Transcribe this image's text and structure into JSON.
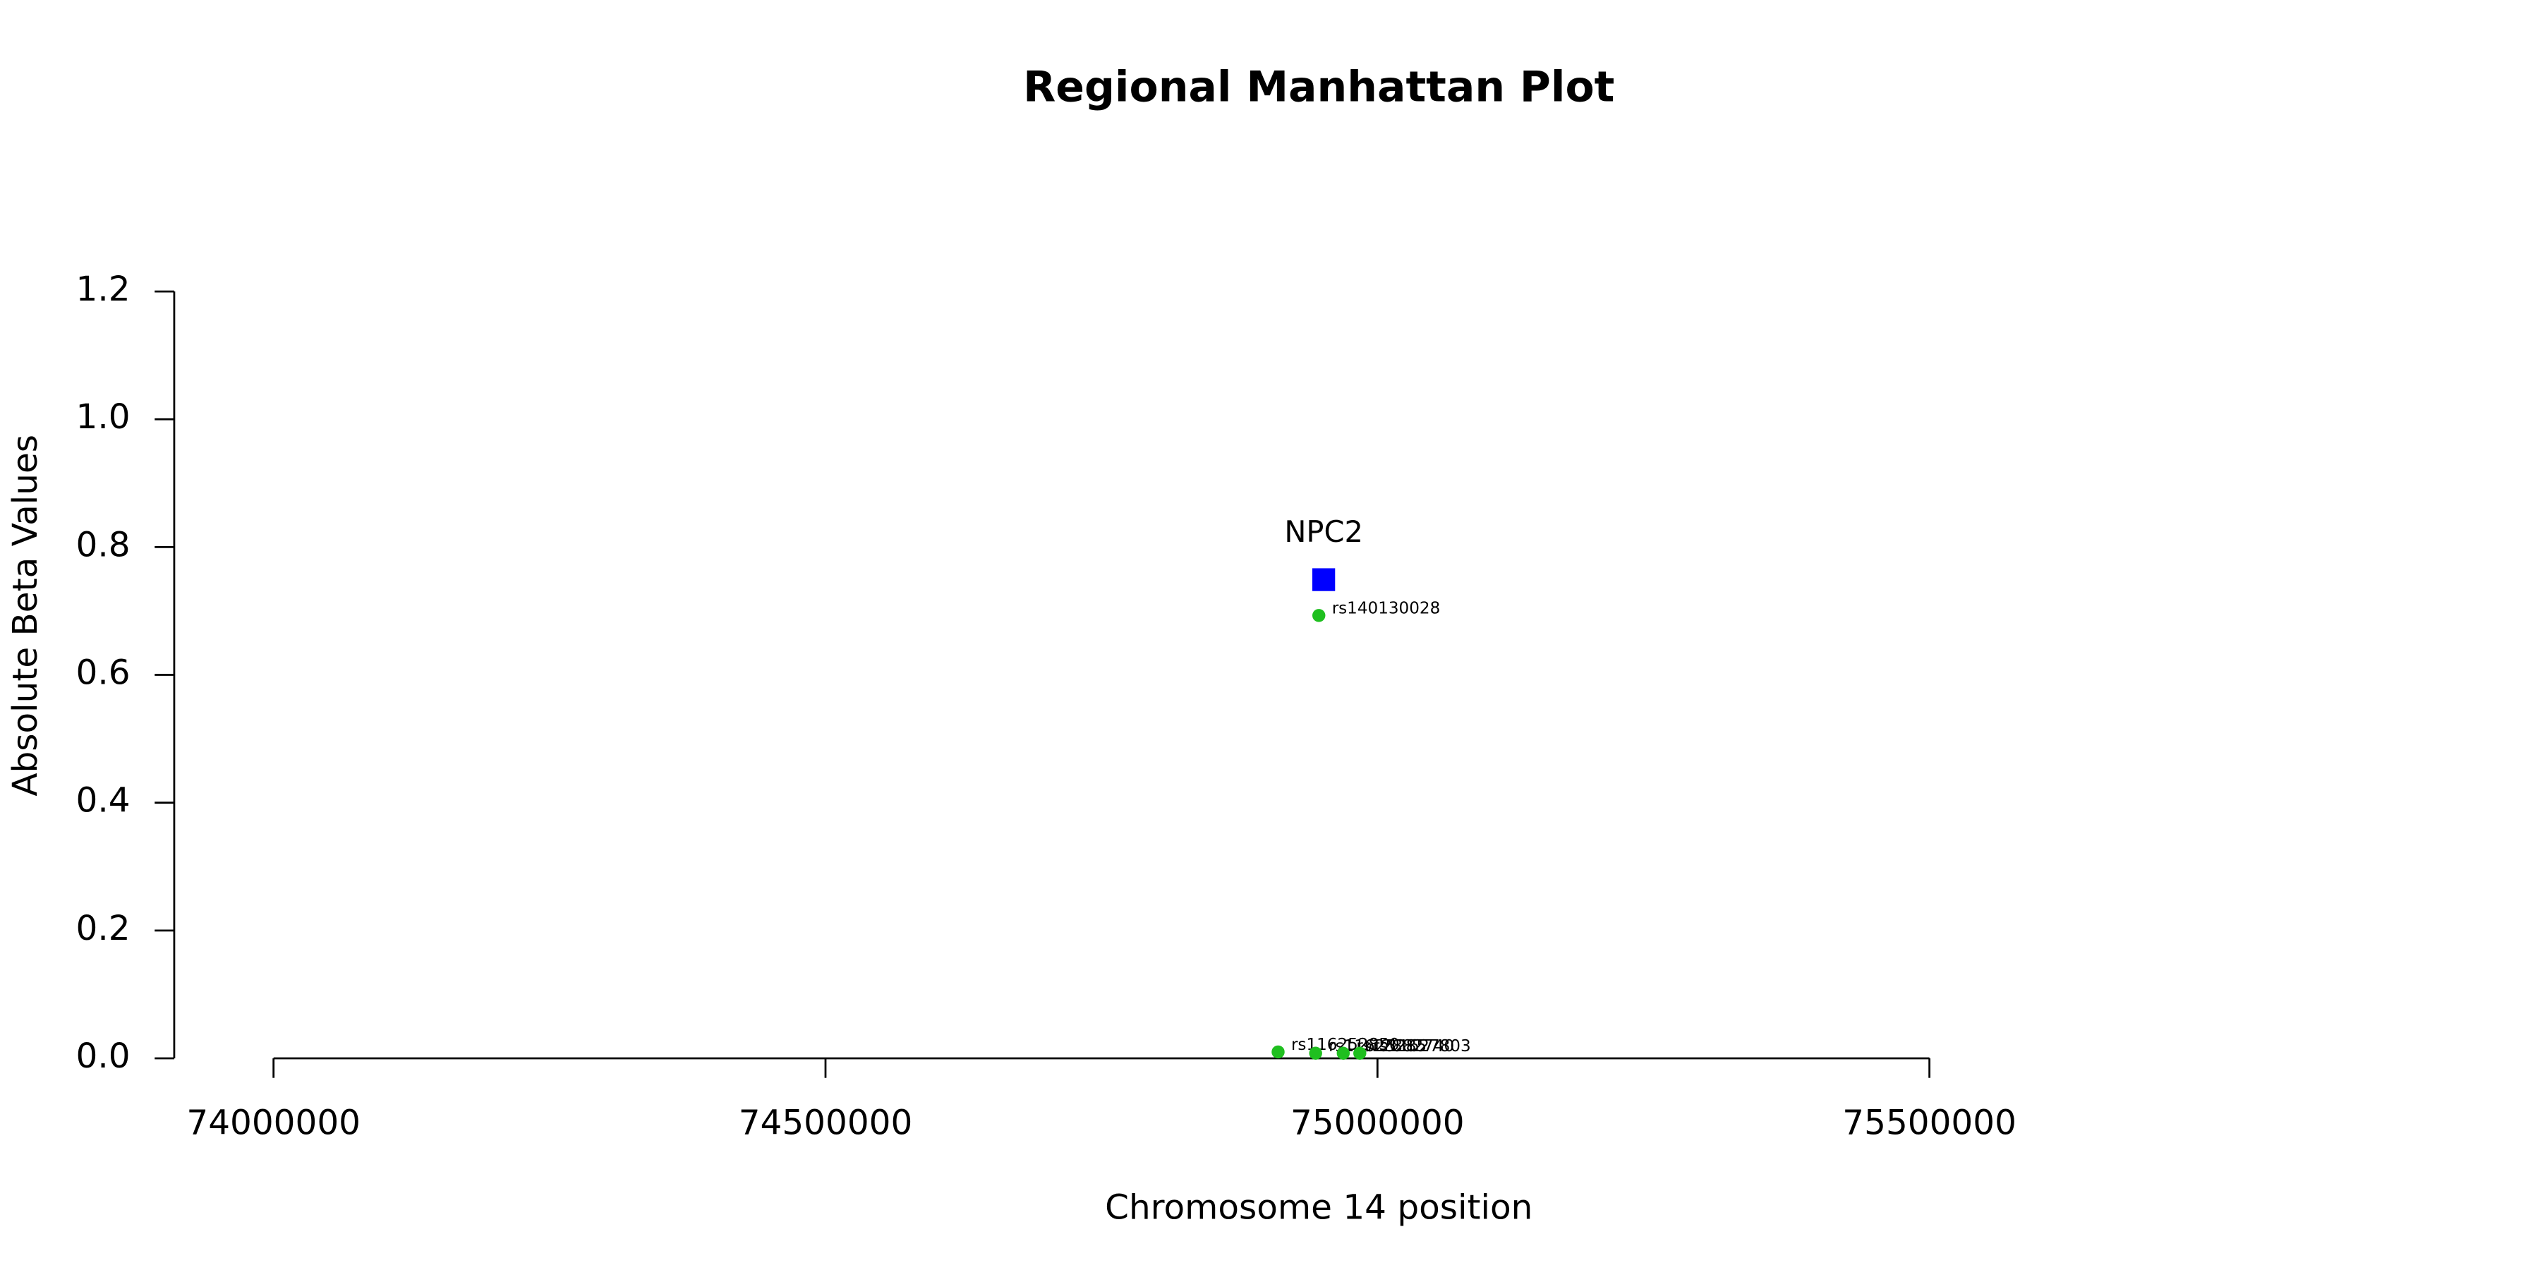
{
  "chart_data": {
    "type": "scatter",
    "title": "Regional Manhattan Plot",
    "x_label": "Chromosome 14 position",
    "y_label": "Absolute Beta Values",
    "xlim": [
      74000000,
      75500000
    ],
    "xticks": [
      74000000,
      74500000,
      75000000,
      75500000
    ],
    "ylim": [
      0,
      1.2
    ],
    "yticks": [
      {
        "value": 0,
        "label": "0.0"
      },
      {
        "value": 0.2,
        "label": "0.2"
      },
      {
        "value": 0.4,
        "label": "0.4"
      },
      {
        "value": 0.6,
        "label": "0.6"
      },
      {
        "value": 0.8,
        "label": "0.8"
      },
      {
        "value": 1,
        "label": "1.0"
      },
      {
        "value": 1.2,
        "label": "1.2"
      }
    ],
    "points": {
      "color": "#1fbf1f",
      "labels": [
        "rs140130028",
        "rs116252850",
        "rs11625285",
        "rs12882740",
        "rs11627803"
      ],
      "x": [
        74946900,
        74910000,
        74944000,
        74969000,
        74984000
      ],
      "values": [
        0.693,
        0.01,
        0.008,
        0.008,
        0.008
      ]
    },
    "gene": {
      "label": "NPC2",
      "x": 74951300,
      "value": 0.749,
      "color": "#0000ff"
    }
  }
}
